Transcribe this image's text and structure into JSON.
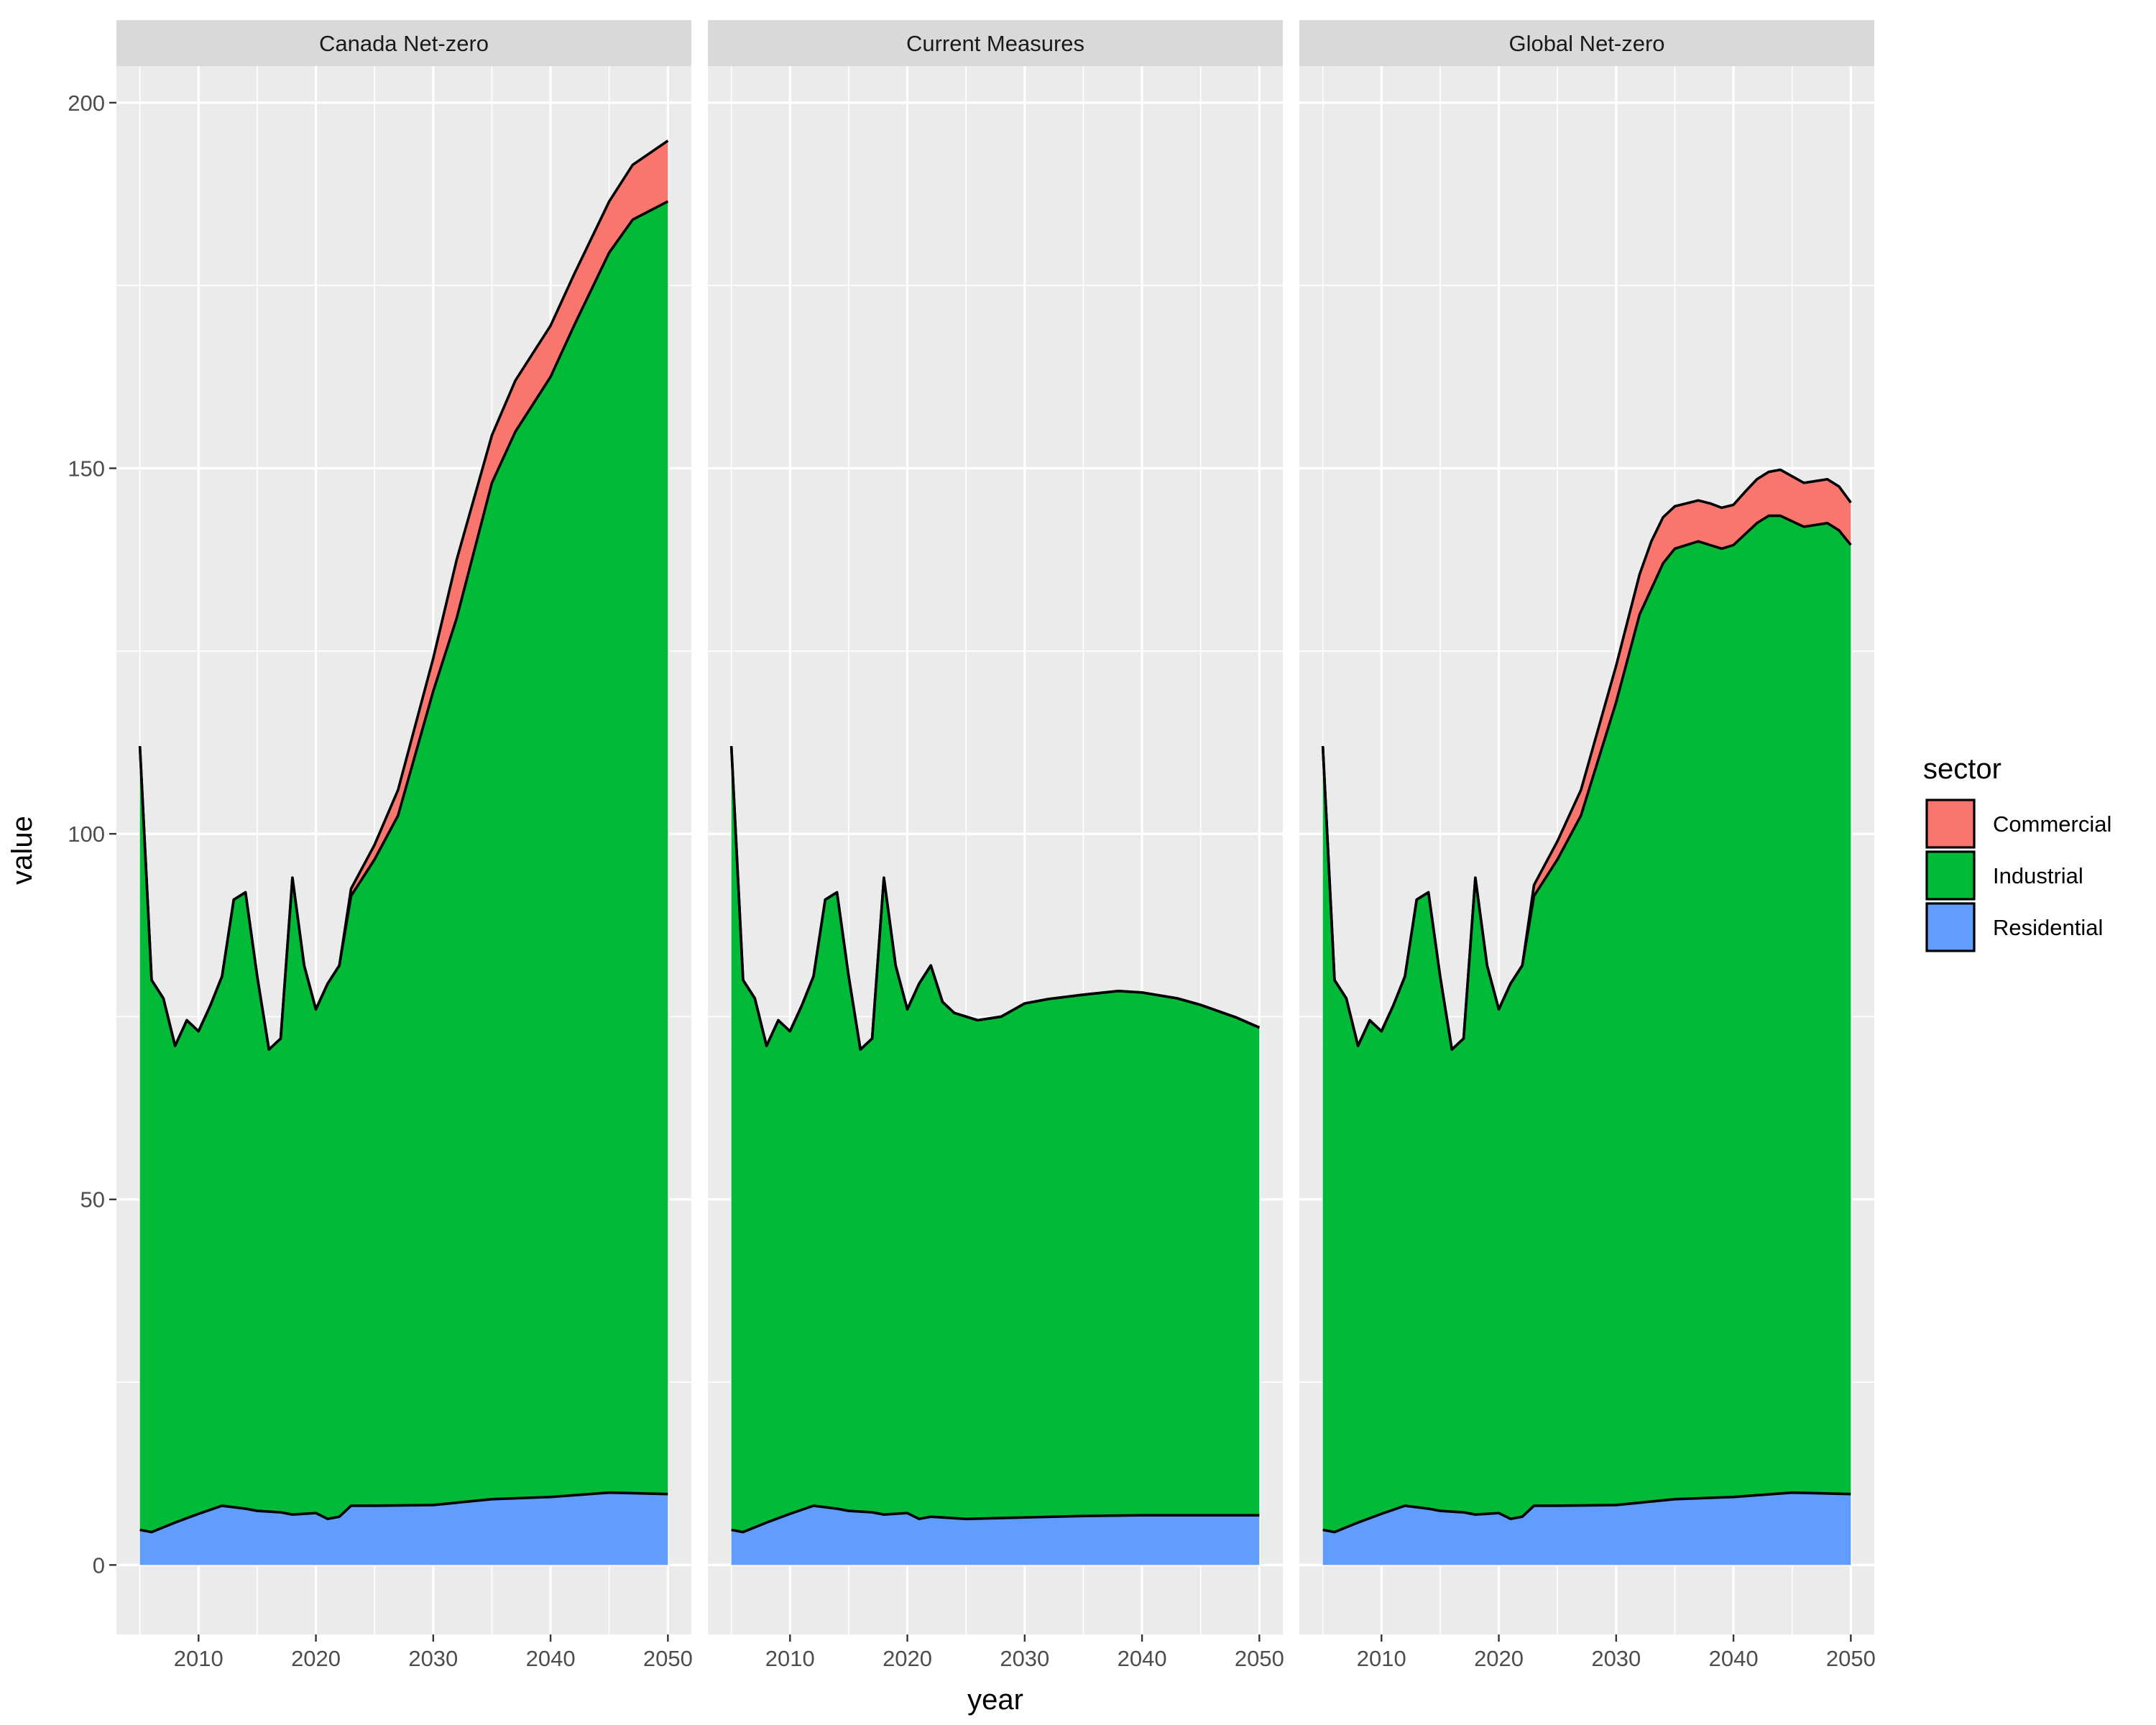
{
  "chart_data": {
    "type": "area",
    "stacked": true,
    "facet_by": "scenario",
    "facets": [
      "Canada Net-zero",
      "Current Measures",
      "Global Net-zero"
    ],
    "xlabel": "year",
    "ylabel": "value",
    "xlim": [
      2003,
      2052
    ],
    "ylim": [
      -9.5,
      205
    ],
    "x_ticks": [
      2010,
      2020,
      2030,
      2040,
      2050
    ],
    "x_tick_labels": [
      "2010",
      "2020",
      "2030",
      "2040",
      "2050"
    ],
    "y_ticks": [
      0,
      50,
      100,
      150,
      200
    ],
    "y_tick_labels": [
      "0",
      "50",
      "100",
      "150",
      "200"
    ],
    "grid": true,
    "legend": {
      "title": "sector",
      "position": "right",
      "entries": [
        "Commercial",
        "Industrial",
        "Residential"
      ]
    },
    "colors": {
      "Commercial": "#F8766D",
      "Industrial": "#00BA38",
      "Residential": "#619CFF",
      "panel_bg": "#EBEBEB",
      "strip_bg": "#D9D9D9",
      "grid": "#FFFFFF"
    },
    "stack_order_bottom_to_top": [
      "Residential",
      "Industrial",
      "Commercial"
    ],
    "panels": [
      {
        "facet": "Canada Net-zero",
        "residential": [
          [
            2005,
            4.8
          ],
          [
            2006,
            4.5
          ],
          [
            2008,
            5.8
          ],
          [
            2010,
            7
          ],
          [
            2012,
            8.1
          ],
          [
            2014,
            7.7
          ],
          [
            2015,
            7.4
          ],
          [
            2017,
            7.2
          ],
          [
            2018,
            6.9
          ],
          [
            2020,
            7.1
          ],
          [
            2021,
            6.3
          ],
          [
            2022,
            6.6
          ],
          [
            2023,
            8.1
          ],
          [
            2025,
            8.1
          ],
          [
            2030,
            8.2
          ],
          [
            2035,
            9
          ],
          [
            2040,
            9.3
          ],
          [
            2045,
            9.9
          ],
          [
            2050,
            9.7
          ]
        ],
        "residential_industrial": [
          [
            2005,
            112
          ],
          [
            2006,
            80
          ],
          [
            2007,
            77.5
          ],
          [
            2008,
            71
          ],
          [
            2009,
            74.5
          ],
          [
            2010,
            73
          ],
          [
            2011,
            76.5
          ],
          [
            2012,
            80.5
          ],
          [
            2013,
            91
          ],
          [
            2014,
            92
          ],
          [
            2015,
            80.5
          ],
          [
            2016,
            70.5
          ],
          [
            2017,
            72
          ],
          [
            2018,
            94
          ],
          [
            2019,
            82
          ],
          [
            2020,
            76
          ],
          [
            2021,
            79.5
          ],
          [
            2022,
            82
          ],
          [
            2023,
            91.5
          ],
          [
            2025,
            96.5
          ],
          [
            2027,
            102.5
          ],
          [
            2030,
            119.5
          ],
          [
            2032,
            129.5
          ],
          [
            2035,
            148
          ],
          [
            2037,
            155
          ],
          [
            2040,
            162.5
          ],
          [
            2042,
            169.5
          ],
          [
            2045,
            179.5
          ],
          [
            2047,
            184
          ],
          [
            2050,
            186.5
          ]
        ],
        "total": [
          [
            2005,
            112
          ],
          [
            2006,
            80
          ],
          [
            2007,
            77.5
          ],
          [
            2008,
            71
          ],
          [
            2009,
            74.5
          ],
          [
            2010,
            73
          ],
          [
            2011,
            76.5
          ],
          [
            2012,
            80.5
          ],
          [
            2013,
            91
          ],
          [
            2014,
            92
          ],
          [
            2015,
            80.5
          ],
          [
            2016,
            70.5
          ],
          [
            2017,
            72
          ],
          [
            2018,
            94
          ],
          [
            2019,
            82
          ],
          [
            2020,
            76
          ],
          [
            2021,
            79.5
          ],
          [
            2022,
            82
          ],
          [
            2023,
            92.5
          ],
          [
            2025,
            98.5
          ],
          [
            2027,
            106
          ],
          [
            2030,
            124
          ],
          [
            2032,
            137.5
          ],
          [
            2035,
            154.5
          ],
          [
            2037,
            162
          ],
          [
            2040,
            169.5
          ],
          [
            2042,
            176.5
          ],
          [
            2045,
            186.5
          ],
          [
            2047,
            191.5
          ],
          [
            2050,
            194.8
          ]
        ]
      },
      {
        "facet": "Current Measures",
        "residential": [
          [
            2005,
            4.8
          ],
          [
            2006,
            4.5
          ],
          [
            2008,
            5.8
          ],
          [
            2010,
            7
          ],
          [
            2012,
            8.1
          ],
          [
            2014,
            7.7
          ],
          [
            2015,
            7.4
          ],
          [
            2017,
            7.2
          ],
          [
            2018,
            6.9
          ],
          [
            2020,
            7.1
          ],
          [
            2021,
            6.3
          ],
          [
            2022,
            6.6
          ],
          [
            2025,
            6.3
          ],
          [
            2030,
            6.5
          ],
          [
            2035,
            6.7
          ],
          [
            2040,
            6.8
          ],
          [
            2045,
            6.8
          ],
          [
            2050,
            6.8
          ]
        ],
        "residential_industrial": [
          [
            2005,
            112
          ],
          [
            2006,
            80
          ],
          [
            2007,
            77.5
          ],
          [
            2008,
            71
          ],
          [
            2009,
            74.5
          ],
          [
            2010,
            73
          ],
          [
            2011,
            76.5
          ],
          [
            2012,
            80.5
          ],
          [
            2013,
            91
          ],
          [
            2014,
            92
          ],
          [
            2015,
            80.5
          ],
          [
            2016,
            70.5
          ],
          [
            2017,
            72
          ],
          [
            2018,
            94
          ],
          [
            2019,
            82
          ],
          [
            2020,
            76
          ],
          [
            2021,
            79.5
          ],
          [
            2022,
            82
          ],
          [
            2023,
            77
          ],
          [
            2024,
            75.5
          ],
          [
            2026,
            74.5
          ],
          [
            2028,
            75
          ],
          [
            2030,
            76.8
          ],
          [
            2032,
            77.4
          ],
          [
            2035,
            78
          ],
          [
            2038,
            78.5
          ],
          [
            2040,
            78.3
          ],
          [
            2043,
            77.5
          ],
          [
            2045,
            76.6
          ],
          [
            2048,
            74.9
          ],
          [
            2050,
            73.5
          ]
        ],
        "total": [
          [
            2005,
            112
          ],
          [
            2006,
            80
          ],
          [
            2007,
            77.5
          ],
          [
            2008,
            71
          ],
          [
            2009,
            74.5
          ],
          [
            2010,
            73
          ],
          [
            2011,
            76.5
          ],
          [
            2012,
            80.5
          ],
          [
            2013,
            91
          ],
          [
            2014,
            92
          ],
          [
            2015,
            80.5
          ],
          [
            2016,
            70.5
          ],
          [
            2017,
            72
          ],
          [
            2018,
            94
          ],
          [
            2019,
            82
          ],
          [
            2020,
            76
          ],
          [
            2021,
            79.5
          ],
          [
            2022,
            82
          ],
          [
            2023,
            77
          ],
          [
            2024,
            75.5
          ],
          [
            2026,
            74.5
          ],
          [
            2028,
            75
          ],
          [
            2030,
            76.8
          ],
          [
            2032,
            77.4
          ],
          [
            2035,
            78
          ],
          [
            2038,
            78.5
          ],
          [
            2040,
            78.3
          ],
          [
            2043,
            77.5
          ],
          [
            2045,
            76.6
          ],
          [
            2048,
            74.9
          ],
          [
            2050,
            73.5
          ]
        ]
      },
      {
        "facet": "Global Net-zero",
        "residential": [
          [
            2005,
            4.8
          ],
          [
            2006,
            4.5
          ],
          [
            2008,
            5.8
          ],
          [
            2010,
            7
          ],
          [
            2012,
            8.1
          ],
          [
            2014,
            7.7
          ],
          [
            2015,
            7.4
          ],
          [
            2017,
            7.2
          ],
          [
            2018,
            6.9
          ],
          [
            2020,
            7.1
          ],
          [
            2021,
            6.3
          ],
          [
            2022,
            6.6
          ],
          [
            2023,
            8.1
          ],
          [
            2025,
            8.1
          ],
          [
            2030,
            8.2
          ],
          [
            2035,
            9
          ],
          [
            2040,
            9.3
          ],
          [
            2045,
            9.9
          ],
          [
            2050,
            9.7
          ]
        ],
        "residential_industrial": [
          [
            2005,
            112
          ],
          [
            2006,
            80
          ],
          [
            2007,
            77.5
          ],
          [
            2008,
            71
          ],
          [
            2009,
            74.5
          ],
          [
            2010,
            73
          ],
          [
            2011,
            76.5
          ],
          [
            2012,
            80.5
          ],
          [
            2013,
            91
          ],
          [
            2014,
            92
          ],
          [
            2015,
            80.5
          ],
          [
            2016,
            70.5
          ],
          [
            2017,
            72
          ],
          [
            2018,
            94
          ],
          [
            2019,
            82
          ],
          [
            2020,
            76
          ],
          [
            2021,
            79.5
          ],
          [
            2022,
            82
          ],
          [
            2023,
            91.5
          ],
          [
            2025,
            96.5
          ],
          [
            2027,
            102.5
          ],
          [
            2030,
            118
          ],
          [
            2032,
            130
          ],
          [
            2034,
            137
          ],
          [
            2035,
            139
          ],
          [
            2037,
            140
          ],
          [
            2038,
            139.5
          ],
          [
            2039,
            139
          ],
          [
            2040,
            139.5
          ],
          [
            2041,
            141
          ],
          [
            2042,
            142.5
          ],
          [
            2043,
            143.5
          ],
          [
            2044,
            143.5
          ],
          [
            2046,
            142
          ],
          [
            2048,
            142.5
          ],
          [
            2049,
            141.5
          ],
          [
            2050,
            139.5
          ]
        ],
        "total": [
          [
            2005,
            112
          ],
          [
            2006,
            80
          ],
          [
            2007,
            77.5
          ],
          [
            2008,
            71
          ],
          [
            2009,
            74.5
          ],
          [
            2010,
            73
          ],
          [
            2011,
            76.5
          ],
          [
            2012,
            80.5
          ],
          [
            2013,
            91
          ],
          [
            2014,
            92
          ],
          [
            2015,
            80.5
          ],
          [
            2016,
            70.5
          ],
          [
            2017,
            72
          ],
          [
            2018,
            94
          ],
          [
            2019,
            82
          ],
          [
            2020,
            76
          ],
          [
            2021,
            79.5
          ],
          [
            2022,
            82
          ],
          [
            2023,
            93
          ],
          [
            2025,
            99
          ],
          [
            2027,
            106
          ],
          [
            2030,
            123
          ],
          [
            2032,
            135.5
          ],
          [
            2033,
            140
          ],
          [
            2034,
            143.3
          ],
          [
            2035,
            144.8
          ],
          [
            2037,
            145.6
          ],
          [
            2038,
            145.2
          ],
          [
            2039,
            144.6
          ],
          [
            2040,
            145
          ],
          [
            2041,
            146.8
          ],
          [
            2042,
            148.5
          ],
          [
            2043,
            149.5
          ],
          [
            2044,
            149.8
          ],
          [
            2046,
            148
          ],
          [
            2048,
            148.5
          ],
          [
            2049,
            147.5
          ],
          [
            2050,
            145.3
          ]
        ]
      }
    ]
  }
}
